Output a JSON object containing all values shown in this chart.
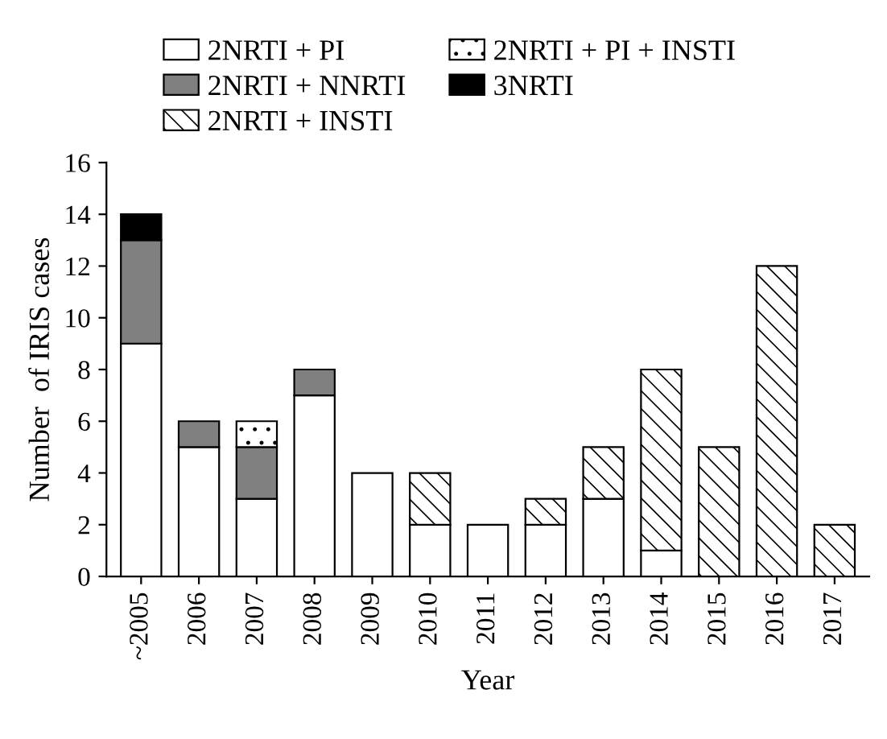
{
  "chart_data": {
    "type": "bar",
    "stacked": true,
    "xlabel": "Year",
    "ylabel": "Number  of IRIS cases",
    "categories": [
      "~2005",
      "2006",
      "2007",
      "2008",
      "2009",
      "2010",
      "2011",
      "2012",
      "2013",
      "2014",
      "2015",
      "2016",
      "2017"
    ],
    "series": [
      {
        "name": "2NRTI + PI",
        "color": "#ffffff",
        "values": [
          9,
          5,
          3,
          7,
          4,
          2,
          2,
          2,
          3,
          1,
          0,
          0,
          0
        ]
      },
      {
        "name": "2NRTI + NNRTI",
        "color": "#808080",
        "values": [
          4,
          1,
          2,
          1,
          0,
          0,
          0,
          0,
          0,
          0,
          0,
          0,
          0
        ]
      },
      {
        "name": "2NRTI + INSTI",
        "color": "#000000",
        "values": [
          0,
          0,
          0,
          0,
          0,
          2,
          0,
          1,
          2,
          7,
          5,
          12,
          2
        ]
      },
      {
        "name": "2NRTI + PI + INSTI",
        "color": "#000000",
        "values": [
          0,
          0,
          1,
          0,
          0,
          0,
          0,
          0,
          0,
          0,
          0,
          0,
          0
        ]
      },
      {
        "name": "3NRTI",
        "color": "#000000",
        "values": [
          1,
          0,
          0,
          0,
          0,
          0,
          0,
          0,
          0,
          0,
          0,
          0,
          0
        ]
      }
    ],
    "ylim": [
      0,
      16
    ],
    "yticks": [
      0,
      2,
      4,
      6,
      8,
      10,
      12,
      14,
      16
    ],
    "grid": false,
    "legend": "top"
  }
}
